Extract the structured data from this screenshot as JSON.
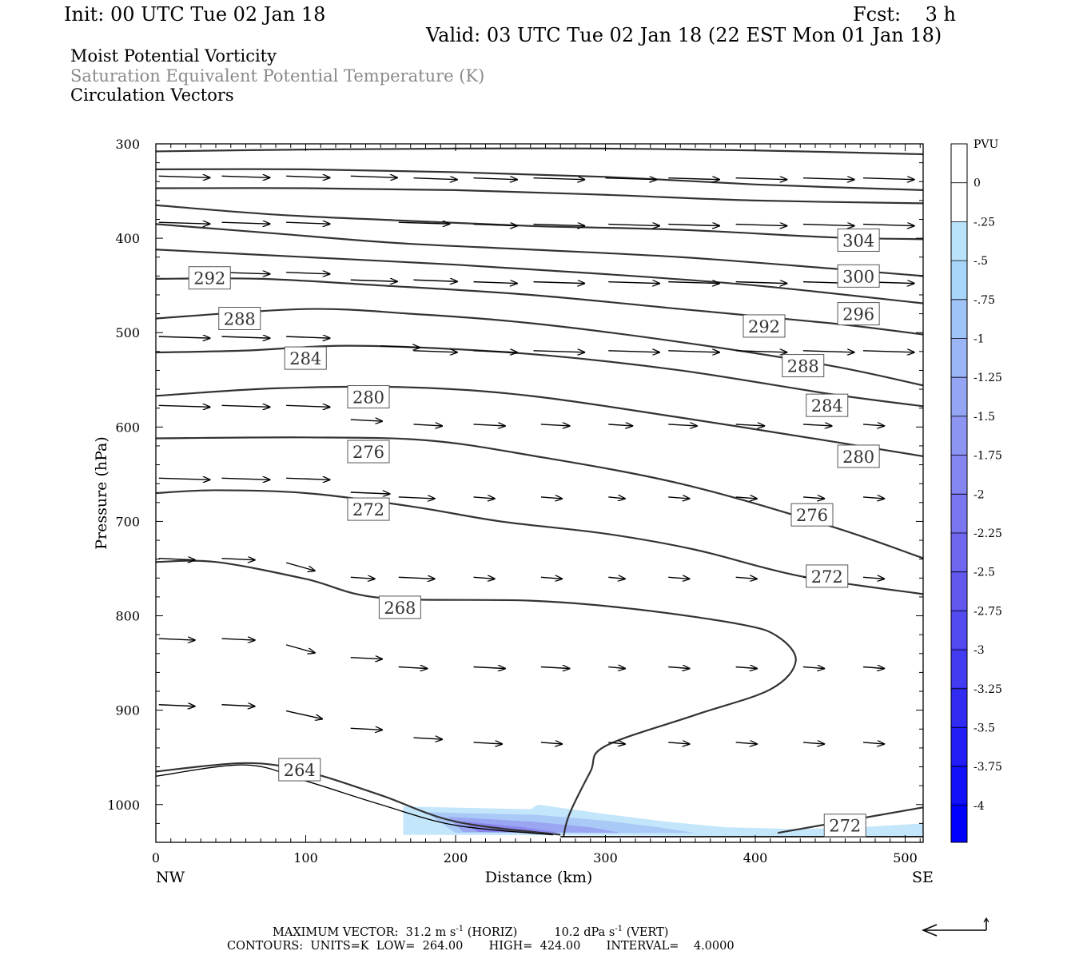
{
  "header": {
    "init": "Init: 00 UTC Tue 02 Jan 18",
    "fcst": "Fcst:    3 h",
    "valid": "Valid: 03 UTC Tue 02 Jan 18 (22 EST Mon 01 Jan 18)",
    "field1": "Moist Potential Vorticity",
    "field2": "Saturation Equivalent Potential Temperature (K)",
    "field3": "Circulation Vectors"
  },
  "footer": {
    "max_vector_label": "MAXIMUM VECTOR:",
    "max_vector_horiz": "31.2 m s",
    "horiz_tag": "(HORIZ)",
    "max_vector_vert": "10.2 dPa s",
    "vert_tag": "(VERT)",
    "exponent": "-1",
    "contours_line": "CONTOURS:  UNITS=K  LOW=  264.00       HIGH=  424.00       INTERVAL=    4.0000"
  },
  "colors": {
    "contour": "#333333",
    "vector": "#000000",
    "pv_shade": [
      "#c4e6fb",
      "#a9c9f7",
      "#9aa6f2",
      "#8a86ee"
    ],
    "colorbar": [
      "#ffffff",
      "#ffffff",
      "#b9e3fb",
      "#a8d6fb",
      "#9fc5f8",
      "#9ab6f6",
      "#94a5f4",
      "#8d95f2",
      "#8585f0",
      "#7a76ef",
      "#6f67ee",
      "#6258ee",
      "#534aef",
      "#433bf1",
      "#322cf3",
      "#221df6",
      "#1210f9",
      "#0000ff"
    ]
  },
  "chart_data": {
    "type": "cross-section",
    "xlabel": "Distance (km)",
    "ylabel": "Pressure (hPa)",
    "x_ticks": [
      0,
      100,
      200,
      300,
      400,
      500
    ],
    "y_ticks": [
      300,
      400,
      500,
      600,
      700,
      800,
      900,
      1000
    ],
    "xlim": [
      0,
      512
    ],
    "ylim": [
      300,
      1040
    ],
    "x_end_labels": [
      "NW",
      "SE"
    ],
    "colorbar": {
      "unit": "PVU",
      "labels": [
        "0",
        "-.25",
        "-.5",
        "-.75",
        "-1",
        "-1.25",
        "-1.5",
        "-1.75",
        "-2",
        "-2.25",
        "-2.5",
        "-2.75",
        "-3",
        "-3.25",
        "-3.5",
        "-3.75",
        "-4"
      ]
    },
    "contours": [
      {
        "points": [
          [
            0,
            308
          ],
          [
            100,
            306
          ],
          [
            200,
            305
          ],
          [
            300,
            305
          ],
          [
            400,
            307
          ],
          [
            512,
            311
          ]
        ]
      },
      {
        "points": [
          [
            0,
            327
          ],
          [
            100,
            327
          ],
          [
            200,
            330
          ],
          [
            300,
            335
          ],
          [
            400,
            343
          ],
          [
            512,
            349
          ]
        ]
      },
      {
        "points": [
          [
            0,
            347
          ],
          [
            100,
            347
          ],
          [
            200,
            349
          ],
          [
            300,
            354
          ],
          [
            400,
            360
          ],
          [
            512,
            363
          ]
        ]
      },
      {
        "points": [
          [
            0,
            365
          ],
          [
            80,
            375
          ],
          [
            160,
            381
          ],
          [
            250,
            387
          ],
          [
            350,
            391
          ],
          [
            450,
            399
          ],
          [
            512,
            401
          ]
        ]
      },
      {
        "points": [
          [
            0,
            385
          ],
          [
            80,
            395
          ],
          [
            160,
            405
          ],
          [
            250,
            412
          ],
          [
            350,
            420
          ],
          [
            450,
            432
          ],
          [
            512,
            440
          ]
        ]
      },
      {
        "points": [
          [
            0,
            412
          ],
          [
            100,
            420
          ],
          [
            200,
            428
          ],
          [
            300,
            438
          ],
          [
            400,
            450
          ],
          [
            512,
            469
          ]
        ]
      },
      {
        "label": "292",
        "label_at": [
          22,
          442
        ],
        "points": [
          [
            0,
            443
          ],
          [
            70,
            443
          ],
          [
            150,
            450
          ],
          [
            250,
            460
          ],
          [
            350,
            475
          ],
          [
            450,
            490
          ],
          [
            512,
            502
          ]
        ]
      },
      {
        "label": "288",
        "label_at": [
          42,
          485
        ],
        "points": [
          [
            0,
            485
          ],
          [
            100,
            475
          ],
          [
            170,
            480
          ],
          [
            250,
            490
          ],
          [
            350,
            510
          ],
          [
            450,
            535
          ],
          [
            512,
            556
          ]
        ]
      },
      {
        "label": "284",
        "label_at": [
          86,
          527
        ],
        "points": [
          [
            0,
            521
          ],
          [
            60,
            519
          ],
          [
            120,
            514
          ],
          [
            180,
            516
          ],
          [
            260,
            524
          ],
          [
            350,
            540
          ],
          [
            450,
            565
          ],
          [
            512,
            578
          ]
        ]
      },
      {
        "label": "280",
        "label_at": [
          128,
          568
        ],
        "points": [
          [
            0,
            567
          ],
          [
            80,
            559
          ],
          [
            170,
            558
          ],
          [
            250,
            567
          ],
          [
            350,
            590
          ],
          [
            450,
            615
          ],
          [
            512,
            631
          ]
        ]
      },
      {
        "label": "276",
        "label_at": [
          128,
          626
        ],
        "points": [
          [
            0,
            612
          ],
          [
            100,
            611
          ],
          [
            180,
            614
          ],
          [
            250,
            630
          ],
          [
            350,
            660
          ],
          [
            450,
            705
          ],
          [
            512,
            739
          ]
        ]
      },
      {
        "label": "272",
        "label_at": [
          128,
          687
        ],
        "points": [
          [
            0,
            670
          ],
          [
            40,
            667
          ],
          [
            100,
            670
          ],
          [
            170,
            684
          ],
          [
            230,
            700
          ],
          [
            300,
            713
          ],
          [
            360,
            730
          ],
          [
            430,
            758
          ],
          [
            512,
            777
          ]
        ]
      },
      {
        "label": "268",
        "label_at": [
          149,
          791
        ],
        "points": [
          [
            0,
            743
          ],
          [
            40,
            743
          ],
          [
            100,
            761
          ],
          [
            150,
            781
          ],
          [
            250,
            784
          ],
          [
            320,
            793
          ],
          [
            390,
            809
          ],
          [
            415,
            822
          ],
          [
            427,
            848
          ],
          [
            410,
            878
          ],
          [
            360,
            905
          ],
          [
            300,
            938
          ],
          [
            290,
            965
          ],
          [
            276,
            1010
          ],
          [
            272,
            1034
          ]
        ]
      },
      {
        "label": "264",
        "label_at": [
          82,
          963
        ],
        "points": [
          [
            0,
            965
          ],
          [
            60,
            956
          ],
          [
            100,
            965
          ],
          [
            150,
            990
          ],
          [
            200,
            1018
          ],
          [
            270,
            1032
          ]
        ]
      },
      {
        "label": "272",
        "label_at": [
          446,
          1022
        ],
        "points": [
          [
            415,
            1030
          ],
          [
            512,
            1003
          ]
        ]
      }
    ]
  }
}
